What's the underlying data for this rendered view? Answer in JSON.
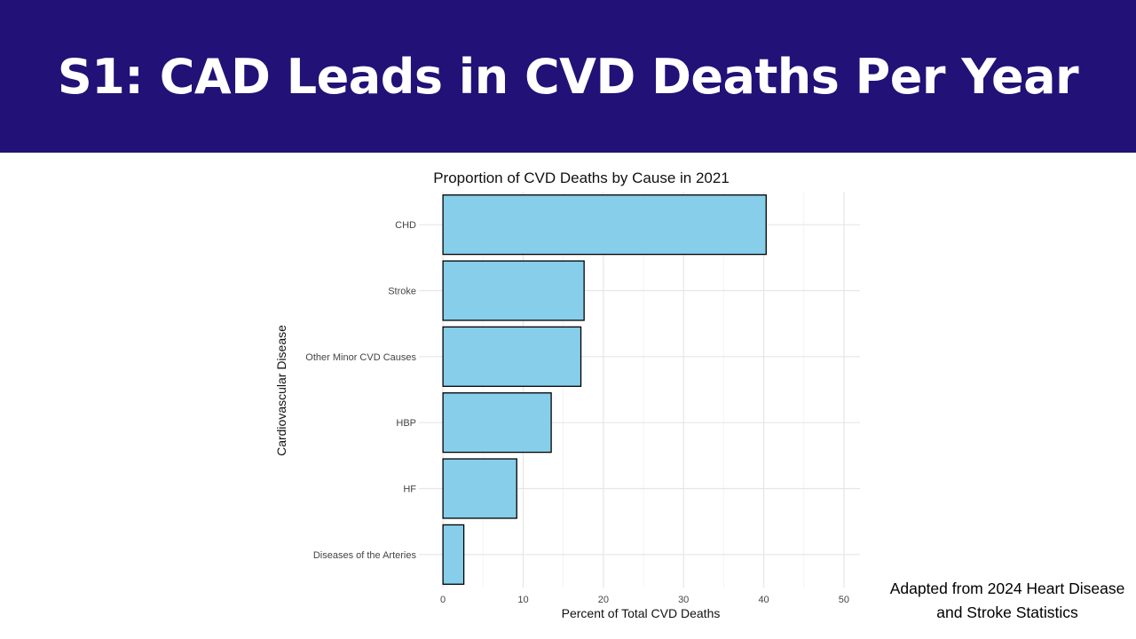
{
  "slide": {
    "title": "S1: CAD Leads in CVD Deaths Per Year",
    "header_color": "#221177",
    "source_note": "Adapted from 2024 Heart Disease and Stroke Statistics"
  },
  "chart_data": {
    "type": "bar",
    "orientation": "horizontal",
    "title": "Proportion of CVD Deaths by Cause in 2021",
    "xlabel": "Percent of Total CVD Deaths",
    "ylabel": "Cardiovascular Disease",
    "categories": [
      "CHD",
      "Stroke",
      "Other Minor CVD Causes",
      "HBP",
      "HF",
      "Diseases of the Arteries"
    ],
    "values": [
      40.3,
      17.6,
      17.2,
      13.5,
      9.2,
      2.6
    ],
    "xlim": [
      -3,
      52
    ],
    "xticks": [
      0,
      10,
      20,
      30,
      40,
      50
    ],
    "grid": true,
    "bar_color": "#87CEEB",
    "bar_edge_color": "#000000"
  }
}
